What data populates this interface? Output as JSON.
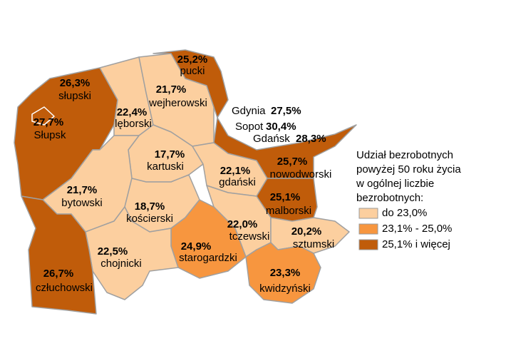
{
  "map": {
    "regions": [
      {
        "name": "pucki",
        "value": 25.2,
        "value_label": "25,2%"
      },
      {
        "name": "słupski",
        "value": 26.3,
        "value_label": "26,3%"
      },
      {
        "name": "Słupsk",
        "value": 27.7,
        "value_label": "27,7%"
      },
      {
        "name": "wejherowski",
        "value": 21.7,
        "value_label": "21,7%"
      },
      {
        "name": "lęborski",
        "value": 22.4,
        "value_label": "22,4%"
      },
      {
        "name": "Gdynia",
        "value": 27.5,
        "value_label": "27,5%"
      },
      {
        "name": "Sopot",
        "value": 30.4,
        "value_label": "30,4%"
      },
      {
        "name": "Gdańsk",
        "value": 28.3,
        "value_label": "28,3%"
      },
      {
        "name": "kartuski",
        "value": 17.7,
        "value_label": "17,7%"
      },
      {
        "name": "gdański",
        "value": 22.1,
        "value_label": "22,1%"
      },
      {
        "name": "nowodworski",
        "value": 25.7,
        "value_label": "25,7%"
      },
      {
        "name": "bytowski",
        "value": 21.7,
        "value_label": "21,7%"
      },
      {
        "name": "kościerski",
        "value": 18.7,
        "value_label": "18,7%"
      },
      {
        "name": "malborski",
        "value": 25.1,
        "value_label": "25,1%"
      },
      {
        "name": "tczewski",
        "value": 22.0,
        "value_label": "22,0%"
      },
      {
        "name": "sztumski",
        "value": 20.2,
        "value_label": "20,2%"
      },
      {
        "name": "starogardzki",
        "value": 24.9,
        "value_label": "24,9%"
      },
      {
        "name": "chojnicki",
        "value": 22.5,
        "value_label": "22,5%"
      },
      {
        "name": "człuchowski",
        "value": 26.7,
        "value_label": "26,7%"
      },
      {
        "name": "kwidzyński",
        "value": 23.3,
        "value_label": "23,3%"
      }
    ],
    "legend": {
      "title": [
        "Udział bezrobotnych",
        "powyżej 50 roku życia",
        "w ogólnej liczbie",
        "bezrobotnych:"
      ],
      "classes": [
        {
          "label": "do 23,0%",
          "max": 23.0,
          "color": "#fccf9f"
        },
        {
          "label": "23,1% - 25,0%",
          "min": 23.1,
          "max": 25.0,
          "color": "#f7963f"
        },
        {
          "label": "25,1% i więcej",
          "min": 25.1,
          "color": "#c05c0a"
        }
      ]
    }
  }
}
